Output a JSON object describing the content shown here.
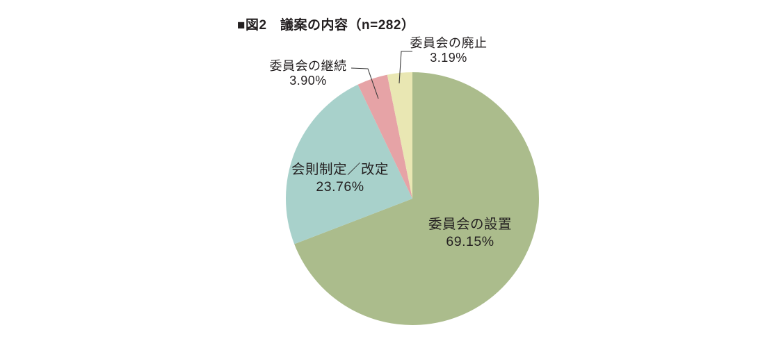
{
  "title": "■図2　議案の内容（n=282）",
  "chart_data": {
    "type": "pie",
    "title": "議案の内容",
    "sample_size_label": "n=282",
    "start_angle_deg": 0,
    "direction": "clockwise",
    "background_color": "#ffffff",
    "text_color": "#231f20",
    "slices": [
      {
        "label": "委員会の設置",
        "value": 69.15,
        "pct_label": "69.15%",
        "color": "#abbc8c",
        "label_placement": "inside"
      },
      {
        "label": "会則制定／改定",
        "value": 23.76,
        "pct_label": "23.76%",
        "color": "#a8d1cb",
        "label_placement": "inside"
      },
      {
        "label": "委員会の継続",
        "value": 3.9,
        "pct_label": "3.90%",
        "color": "#e6a3a6",
        "label_placement": "outside"
      },
      {
        "label": "委員会の廃止",
        "value": 3.19,
        "pct_label": "3.19%",
        "color": "#e9e7b3",
        "label_placement": "outside"
      }
    ]
  }
}
